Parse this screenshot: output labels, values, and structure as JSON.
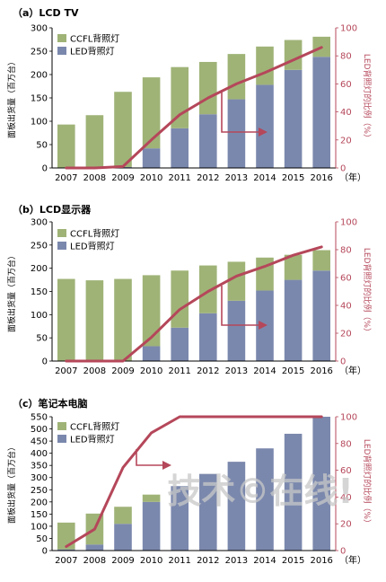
{
  "chart_data": [
    {
      "type": "bar",
      "title": "（a）LCD TV",
      "ylabel": "面板出货量（百万台）",
      "y2label": "LED背照灯的比例（%）",
      "xunit": "（年）",
      "categories": [
        "2007",
        "2008",
        "2009",
        "2010",
        "2011",
        "2012",
        "2013",
        "2014",
        "2015",
        "2016"
      ],
      "ylim": [
        0,
        300
      ],
      "yticks": [
        0,
        50,
        100,
        150,
        200,
        250,
        300
      ],
      "y2lim": [
        0,
        100
      ],
      "y2ticks": [
        0,
        20,
        40,
        60,
        80,
        100
      ],
      "stacked": true,
      "series": [
        {
          "name": "LED背照灯",
          "color": "#7b88ad",
          "values": [
            0,
            0,
            2,
            42,
            85,
            115,
            147,
            178,
            210,
            238
          ]
        },
        {
          "name": "CCFL背照灯",
          "color": "#9fb377",
          "values": [
            93,
            113,
            161,
            152,
            131,
            112,
            97,
            82,
            64,
            43
          ]
        }
      ],
      "line_series": {
        "name": "LED背照灯的比例",
        "color": "#b5475a",
        "axis": "right",
        "values": [
          0,
          0,
          1,
          20,
          38,
          50,
          60,
          68,
          77,
          86
        ]
      }
    },
    {
      "type": "bar",
      "title": "（b）LCD显示器",
      "ylabel": "面板出货量（百万台）",
      "y2label": "LED背照灯的比例（%）",
      "xunit": "（年）",
      "categories": [
        "2007",
        "2008",
        "2009",
        "2010",
        "2011",
        "2012",
        "2013",
        "2014",
        "2015",
        "2016"
      ],
      "ylim": [
        0,
        300
      ],
      "yticks": [
        0,
        50,
        100,
        150,
        200,
        250,
        300
      ],
      "y2lim": [
        0,
        100
      ],
      "y2ticks": [
        0,
        20,
        40,
        60,
        80,
        100
      ],
      "stacked": true,
      "series": [
        {
          "name": "LED背照灯",
          "color": "#7b88ad",
          "values": [
            0,
            0,
            0,
            32,
            72,
            103,
            130,
            152,
            175,
            195
          ]
        },
        {
          "name": "CCFL背照灯",
          "color": "#9fb377",
          "values": [
            177,
            174,
            177,
            153,
            123,
            103,
            84,
            71,
            54,
            44
          ]
        }
      ],
      "line_series": {
        "name": "LED背照灯的比例",
        "color": "#b5475a",
        "axis": "right",
        "values": [
          0,
          0,
          0,
          17,
          37,
          50,
          61,
          68,
          76,
          82
        ]
      }
    },
    {
      "type": "bar",
      "title": "（c）笔记本电脑",
      "ylabel": "面板出货量（百万台）",
      "y2label": "LED背照灯的比例（%）",
      "xunit": "（年）",
      "categories": [
        "2007",
        "2008",
        "2009",
        "2010",
        "2011",
        "2012",
        "2013",
        "2014",
        "2015",
        "2016"
      ],
      "ylim": [
        0,
        550
      ],
      "yticks": [
        0,
        50,
        100,
        150,
        200,
        250,
        300,
        350,
        400,
        450,
        500,
        550
      ],
      "y2lim": [
        0,
        100
      ],
      "y2ticks": [
        0,
        20,
        40,
        60,
        80,
        100
      ],
      "stacked": true,
      "series": [
        {
          "name": "LED背照灯",
          "color": "#7b88ad",
          "values": [
            5,
            25,
            110,
            200,
            265,
            315,
            365,
            420,
            480,
            550
          ]
        },
        {
          "name": "CCFL背照灯",
          "color": "#9fb377",
          "values": [
            110,
            127,
            70,
            30,
            0,
            0,
            0,
            0,
            0,
            0
          ]
        }
      ],
      "line_series": {
        "name": "LED背照灯的比例",
        "color": "#b5475a",
        "axis": "right",
        "values": [
          3,
          16,
          62,
          88,
          100,
          100,
          100,
          100,
          100,
          100
        ]
      }
    }
  ],
  "watermark": "技术©在线!"
}
